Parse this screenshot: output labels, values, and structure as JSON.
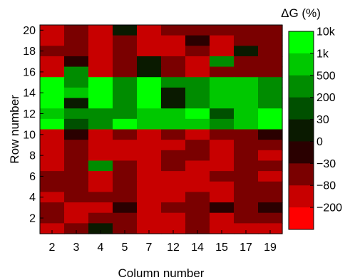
{
  "chart_data": {
    "type": "heatmap",
    "title": "",
    "xlabel": "Column number",
    "ylabel": "Row number",
    "columns": [
      "2",
      "3",
      "4",
      "5",
      "7",
      "12",
      "14",
      "15",
      "17",
      "19"
    ],
    "rows": [
      20,
      19,
      18,
      17,
      16,
      15,
      14,
      13,
      12,
      11,
      10,
      9,
      8,
      7,
      6,
      5,
      4,
      3,
      2,
      1
    ],
    "y_ticks": [
      20,
      18,
      16,
      14,
      12,
      10,
      8,
      6,
      4,
      2
    ],
    "colorbar": {
      "title": "ΔG (%)",
      "labels": [
        "10k",
        "1k",
        "500",
        "200",
        "30",
        "0",
        "−30",
        "−80",
        "−200"
      ],
      "colors": [
        "#00ff00",
        "#00c800",
        "#008c00",
        "#005000",
        "#0a1a00",
        "#2a0000",
        "#7a0000",
        "#c80000",
        "#ff0000"
      ]
    },
    "cells": [
      [
        7,
        6,
        7,
        4,
        7,
        6,
        6,
        6,
        6,
        6
      ],
      [
        7,
        6,
        7,
        6,
        7,
        7,
        5,
        7,
        6,
        6
      ],
      [
        6,
        6,
        7,
        6,
        7,
        7,
        6,
        7,
        4,
        6
      ],
      [
        7,
        5,
        7,
        6,
        4,
        6,
        7,
        2,
        6,
        6
      ],
      [
        7,
        2,
        7,
        6,
        4,
        6,
        7,
        6,
        6,
        6
      ],
      [
        0,
        2,
        0,
        2,
        0,
        2,
        2,
        1,
        1,
        2
      ],
      [
        0,
        1,
        0,
        2,
        0,
        4,
        2,
        1,
        1,
        2
      ],
      [
        0,
        4,
        0,
        2,
        0,
        4,
        2,
        1,
        1,
        2
      ],
      [
        1,
        2,
        2,
        2,
        1,
        1,
        0,
        3,
        1,
        0
      ],
      [
        0,
        3,
        2,
        0,
        1,
        1,
        1,
        2,
        1,
        0
      ],
      [
        7,
        5,
        7,
        6,
        7,
        6,
        7,
        6,
        6,
        5
      ],
      [
        7,
        6,
        7,
        7,
        7,
        7,
        6,
        7,
        6,
        6
      ],
      [
        7,
        6,
        7,
        7,
        7,
        6,
        6,
        7,
        6,
        7
      ],
      [
        7,
        6,
        2,
        6,
        7,
        6,
        7,
        7,
        6,
        6
      ],
      [
        6,
        6,
        7,
        6,
        7,
        7,
        7,
        6,
        6,
        7
      ],
      [
        6,
        6,
        7,
        6,
        7,
        7,
        7,
        7,
        6,
        6
      ],
      [
        7,
        6,
        6,
        6,
        7,
        7,
        6,
        7,
        6,
        6
      ],
      [
        6,
        7,
        7,
        5,
        7,
        6,
        6,
        5,
        6,
        5
      ],
      [
        6,
        7,
        6,
        6,
        7,
        7,
        6,
        7,
        6,
        6
      ],
      [
        7,
        6,
        4,
        6,
        7,
        7,
        6,
        7,
        7,
        7
      ]
    ]
  }
}
